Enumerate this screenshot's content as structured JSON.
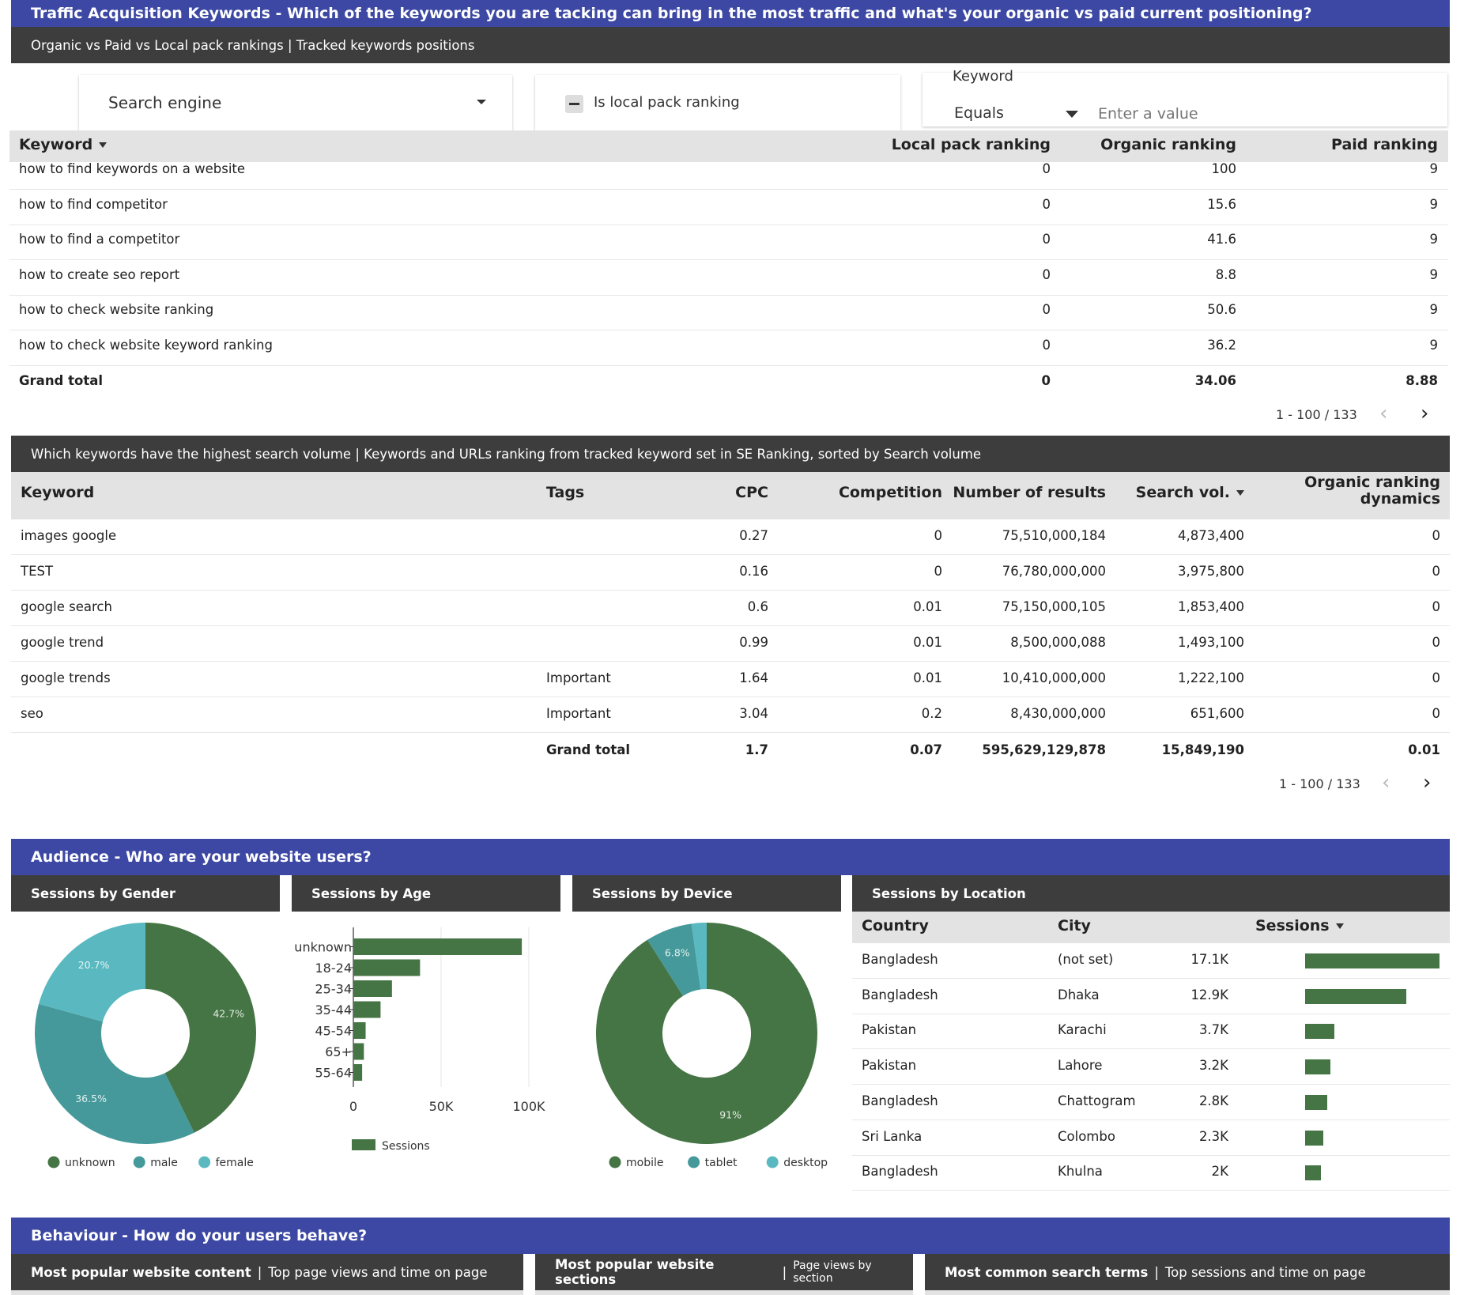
{
  "traffic": {
    "title": "Traffic Acquisition Keywords -  Which of the keywords you are tacking can bring in the most traffic and what's your organic vs paid current positioning?",
    "subtitle": "Organic vs Paid  vs Local pack rankings | Tracked keywords positions",
    "filters": {
      "search_engine": "Search engine",
      "local_pack": "Is local pack ranking",
      "keyword_label": "Keyword",
      "operator": "Equals",
      "value_placeholder": "Enter a value"
    },
    "headers": [
      "Keyword",
      "Local pack ranking",
      "Organic ranking",
      "Paid ranking"
    ],
    "rows": [
      {
        "keyword": "how to find keywords on a website",
        "local": "0",
        "organic": "100",
        "paid": "9"
      },
      {
        "keyword": "how to find competitor",
        "local": "0",
        "organic": "15.6",
        "paid": "9"
      },
      {
        "keyword": "how to find a competitor",
        "local": "0",
        "organic": "41.6",
        "paid": "9"
      },
      {
        "keyword": "how to create seo report",
        "local": "0",
        "organic": "8.8",
        "paid": "9"
      },
      {
        "keyword": "how to check website ranking",
        "local": "0",
        "organic": "50.6",
        "paid": "9"
      },
      {
        "keyword": "how to check website keyword ranking",
        "local": "0",
        "organic": "36.2",
        "paid": "9"
      }
    ],
    "total": {
      "label": "Grand total",
      "local": "0",
      "organic": "34.06",
      "paid": "8.88"
    },
    "pager": "1 - 100 / 133"
  },
  "volume": {
    "title": "Which keywords have the highest search volume | Keywords and URLs ranking from tracked keyword set in SE Ranking, sorted by Search volume",
    "headers": {
      "keyword": "Keyword",
      "tags": "Tags",
      "cpc": "CPC",
      "competition": "Competition",
      "results": "Number of results",
      "search": "Search vol.",
      "dyn1": "Organic ranking",
      "dyn2": "dynamics"
    },
    "rows": [
      {
        "keyword": "images google",
        "tags": "",
        "cpc": "0.27",
        "competition": "0",
        "results": "75,510,000,184",
        "search": "4,873,400",
        "dyn": "0"
      },
      {
        "keyword": "TEST",
        "tags": "",
        "cpc": "0.16",
        "competition": "0",
        "results": "76,780,000,000",
        "search": "3,975,800",
        "dyn": "0"
      },
      {
        "keyword": "google search",
        "tags": "",
        "cpc": "0.6",
        "competition": "0.01",
        "results": "75,150,000,105",
        "search": "1,853,400",
        "dyn": "0"
      },
      {
        "keyword": "google trend",
        "tags": "",
        "cpc": "0.99",
        "competition": "0.01",
        "results": "8,500,000,088",
        "search": "1,493,100",
        "dyn": "0"
      },
      {
        "keyword": "google trends",
        "tags": "Important",
        "cpc": "1.64",
        "competition": "0.01",
        "results": "10,410,000,000",
        "search": "1,222,100",
        "dyn": "0"
      },
      {
        "keyword": "seo",
        "tags": "Important",
        "cpc": "3.04",
        "competition": "0.2",
        "results": "8,430,000,000",
        "search": "651,600",
        "dyn": "0"
      }
    ],
    "total": {
      "label": "Grand total",
      "cpc": "1.7",
      "competition": "0.07",
      "results": "595,629,129,878",
      "search": "15,849,190",
      "dyn": "0.01"
    },
    "pager": "1 - 100 / 133"
  },
  "audience": {
    "title": "Audience -  Who are your website users?",
    "gender": {
      "title": "Sessions by Gender",
      "slices": [
        {
          "name": "unknown",
          "value": 42.7,
          "label": "42.7%",
          "color": "#467545"
        },
        {
          "name": "male",
          "value": 36.5,
          "label": "36.5%",
          "color": "#45999a"
        },
        {
          "name": "female",
          "value": 20.7,
          "label": "20.7%",
          "color": "#5ab9c0"
        }
      ]
    },
    "age": {
      "title": "Sessions by Age",
      "categories": [
        "unknown",
        "18-24",
        "25-34",
        "35-44",
        "45-54",
        "65+",
        "55-64"
      ],
      "values": [
        96000,
        38000,
        22000,
        15500,
        7000,
        6000,
        5000
      ],
      "ticks": [
        "0",
        "50K",
        "100K"
      ],
      "series_name": "Sessions",
      "color": "#467545"
    },
    "device": {
      "title": "Sessions by Device",
      "slices": [
        {
          "name": "mobile",
          "value": 91,
          "label": "91%",
          "color": "#467545"
        },
        {
          "name": "tablet",
          "value": 6.8,
          "label": "6.8%",
          "color": "#45999a"
        },
        {
          "name": "desktop",
          "value": 2.2,
          "label": "",
          "color": "#5ab9c0"
        }
      ]
    },
    "location": {
      "title": "Sessions by Location",
      "headers": {
        "country": "Country",
        "city": "City",
        "sessions": "Sessions"
      },
      "rows": [
        {
          "country": "Bangladesh",
          "city": "(not set)",
          "label": "17.1K",
          "value": 17100
        },
        {
          "country": "Bangladesh",
          "city": "Dhaka",
          "label": "12.9K",
          "value": 12900
        },
        {
          "country": "Pakistan",
          "city": "Karachi",
          "label": "3.7K",
          "value": 3700
        },
        {
          "country": "Pakistan",
          "city": "Lahore",
          "label": "3.2K",
          "value": 3200
        },
        {
          "country": "Bangladesh",
          "city": "Chattogram",
          "label": "2.8K",
          "value": 2800
        },
        {
          "country": "Sri Lanka",
          "city": "Colombo",
          "label": "2.3K",
          "value": 2300
        },
        {
          "country": "Bangladesh",
          "city": "Khulna",
          "label": "2K",
          "value": 2000
        }
      ],
      "bar_color": "#467545"
    }
  },
  "behaviour": {
    "title": "Behaviour -  How do your users behave?",
    "content": {
      "bold": "Most popular website content",
      "rest": "Top page views and time on page"
    },
    "sections": {
      "bold": "Most popular website sections",
      "rest": "Page views by section"
    },
    "search": {
      "bold": "Most common search terms",
      "rest": "Top sessions and time on page"
    }
  },
  "chart_data": [
    {
      "type": "pie",
      "title": "Sessions by Gender",
      "categories": [
        "unknown",
        "male",
        "female"
      ],
      "values": [
        42.7,
        36.5,
        20.7
      ],
      "legend": "bottom"
    },
    {
      "type": "bar",
      "title": "Sessions by Age",
      "categories": [
        "unknown",
        "18-24",
        "25-34",
        "35-44",
        "45-54",
        "65+",
        "55-64"
      ],
      "series": [
        {
          "name": "Sessions",
          "values": [
            96000,
            38000,
            22000,
            15500,
            7000,
            6000,
            5000
          ]
        }
      ],
      "xlim": [
        0,
        100000
      ],
      "legend": "bottom"
    },
    {
      "type": "pie",
      "title": "Sessions by Device",
      "categories": [
        "mobile",
        "tablet",
        "desktop"
      ],
      "values": [
        91,
        6.8,
        2.2
      ],
      "legend": "bottom"
    },
    {
      "type": "table",
      "title": "Sessions by Location",
      "categories": [
        "(not set)",
        "Dhaka",
        "Karachi",
        "Lahore",
        "Chattogram",
        "Colombo",
        "Khulna"
      ],
      "values": [
        17100,
        12900,
        3700,
        3200,
        2800,
        2300,
        2000
      ]
    }
  ]
}
